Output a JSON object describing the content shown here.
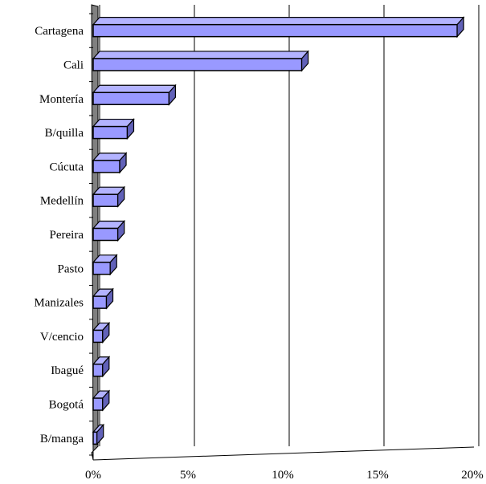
{
  "chart_data": {
    "type": "bar",
    "orientation": "horizontal",
    "style": "3d",
    "categories": [
      "Cartagena",
      "Cali",
      "Montería",
      "B/quilla",
      "Cúcuta",
      "Medellín",
      "Pereira",
      "Pasto",
      "Manizales",
      "V/cencio",
      "Ibagué",
      "Bogotá",
      "B/manga"
    ],
    "values": [
      19.2,
      11.0,
      4.0,
      1.8,
      1.4,
      1.3,
      1.3,
      0.9,
      0.7,
      0.5,
      0.5,
      0.5,
      0.2
    ],
    "xlim": [
      0,
      20
    ],
    "xticks": [
      0,
      5,
      10,
      15,
      20
    ],
    "xtick_labels": [
      "0%",
      "5%",
      "10%",
      "15%",
      "20%"
    ],
    "title": "",
    "xlabel": "",
    "ylabel": "",
    "grid": "vertical",
    "legend": "none",
    "colors": {
      "bar_face": "#9999ff",
      "bar_top": "#b3b3ff",
      "bar_side": "#6161b8",
      "wall": "#808080",
      "outline": "#000000"
    }
  }
}
